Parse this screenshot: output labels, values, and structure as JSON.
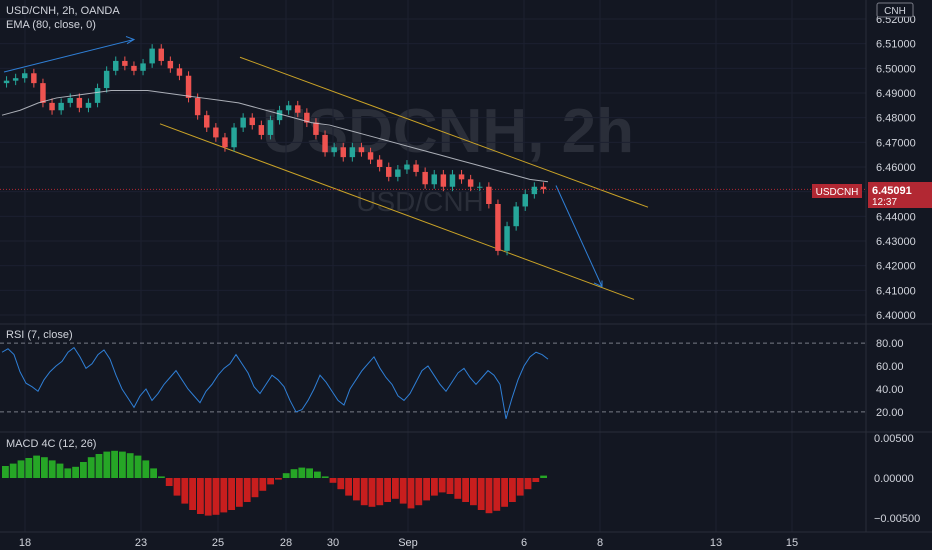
{
  "header": {
    "symbol_line": "USD/CNH, 2h, OANDA",
    "ema_line": "EMA (80, close, 0)"
  },
  "watermark": {
    "big": "USDCNH, 2h",
    "small": "USD/CNH"
  },
  "currency_tag": "CNH",
  "price_tag": {
    "symbol": "USDCNH",
    "price": "6.45091",
    "countdown": "12:37",
    "color": "#b22833"
  },
  "colors": {
    "background": "#131722",
    "up": "#26a69a",
    "down": "#ef5350",
    "channel": "#c9a227",
    "trend_arrow": "#2f7fd6",
    "ema": "#d1d4dc",
    "rsi": "#2f7fd6",
    "macd_up": "#26a626",
    "macd_down": "#c81e1e"
  },
  "chart_data": [
    {
      "type": "line",
      "title": "USD/CNH, 2h, OANDA",
      "ylim": [
        6.4,
        6.52
      ],
      "y_ticks": [
        "6.52000",
        "6.51000",
        "6.50000",
        "6.49000",
        "6.48000",
        "6.47000",
        "6.46000",
        "6.45000",
        "6.44000",
        "6.43000",
        "6.42000",
        "6.41000",
        "6.40000"
      ],
      "x_ticks": [
        "18",
        "23",
        "25",
        "28",
        "30",
        "Sep",
        "6",
        "8",
        "13",
        "15"
      ],
      "series": [
        {
          "values": [
            6.495,
            6.496,
            6.498,
            6.494,
            6.486,
            6.483,
            6.486,
            6.488,
            6.484,
            6.486,
            6.492,
            6.499,
            6.503,
            6.501,
            6.499,
            6.502,
            6.508,
            6.503,
            6.5,
            6.497,
            6.488,
            6.481,
            6.476,
            6.472,
            6.468,
            6.476,
            6.48,
            6.477,
            6.473,
            6.479,
            6.483,
            6.485,
            6.482,
            6.478,
            6.473,
            6.466,
            6.468,
            6.464,
            6.468,
            6.466,
            6.463,
            6.46,
            6.456,
            6.459,
            6.461,
            6.458,
            6.453,
            6.457,
            6.452,
            6.457,
            6.455,
            6.452,
            6.452,
            6.445,
            6.426,
            6.436,
            6.444,
            6.449,
            6.452,
            6.451
          ]
        },
        {
          "name": "EMA (80, close, 0)",
          "values": [
            6.481,
            6.483,
            6.486,
            6.488,
            6.489,
            6.49,
            6.491,
            6.491,
            6.491,
            6.49,
            6.489,
            6.488,
            6.487,
            6.486,
            6.484,
            6.482,
            6.48,
            6.478,
            6.477,
            6.475,
            6.473,
            6.471,
            6.469,
            6.467,
            6.465,
            6.463,
            6.461,
            6.459,
            6.457,
            6.455,
            6.454
          ]
        }
      ]
    },
    {
      "type": "line",
      "title": "RSI (7, close)",
      "ylim": [
        6,
        94
      ],
      "y_ticks": [
        "80.00",
        "60.00",
        "40.00",
        "20.00"
      ],
      "levels": [
        80,
        20
      ],
      "values": [
        72,
        75,
        70,
        55,
        45,
        42,
        38,
        48,
        55,
        60,
        64,
        72,
        76,
        68,
        58,
        62,
        70,
        74,
        66,
        52,
        40,
        32,
        24,
        34,
        40,
        30,
        36,
        44,
        50,
        56,
        48,
        40,
        34,
        28,
        38,
        44,
        52,
        58,
        62,
        70,
        62,
        54,
        42,
        36,
        44,
        52,
        48,
        42,
        30,
        20,
        22,
        30,
        40,
        52,
        46,
        38,
        30,
        26,
        40,
        48,
        56,
        62,
        68,
        58,
        50,
        44,
        34,
        30,
        36,
        46,
        56,
        60,
        52,
        44,
        38,
        46,
        54,
        58,
        50,
        44,
        50,
        56,
        52,
        44,
        14,
        32,
        48,
        60,
        68,
        72,
        70,
        66
      ]
    },
    {
      "type": "bar",
      "title": "MACD 4C (12, 26)",
      "ylim": [
        -0.0065,
        0.0055
      ],
      "y_ticks": [
        "0.00500",
        "0.00000",
        "-0.00500"
      ],
      "values": [
        0.0015,
        0.0018,
        0.0022,
        0.0025,
        0.0028,
        0.0026,
        0.0022,
        0.0018,
        0.0012,
        0.0014,
        0.002,
        0.0026,
        0.003,
        0.0033,
        0.0034,
        0.0033,
        0.0031,
        0.0028,
        0.0022,
        0.0012,
        0.0002,
        -0.001,
        -0.0022,
        -0.0032,
        -0.004,
        -0.0045,
        -0.0047,
        -0.0046,
        -0.0043,
        -0.004,
        -0.0036,
        -0.003,
        -0.0024,
        -0.0016,
        -0.0008,
        -0.0002,
        0.0006,
        0.0011,
        0.0013,
        0.0012,
        0.0008,
        0.0002,
        -0.0006,
        -0.0014,
        -0.0022,
        -0.0028,
        -0.0034,
        -0.0036,
        -0.0034,
        -0.003,
        -0.0026,
        -0.0032,
        -0.0038,
        -0.0034,
        -0.0028,
        -0.0022,
        -0.0018,
        -0.002,
        -0.0026,
        -0.003,
        -0.0034,
        -0.004,
        -0.0044,
        -0.0041,
        -0.0036,
        -0.003,
        -0.0022,
        -0.0014,
        -0.0005,
        0.0003
      ]
    }
  ]
}
